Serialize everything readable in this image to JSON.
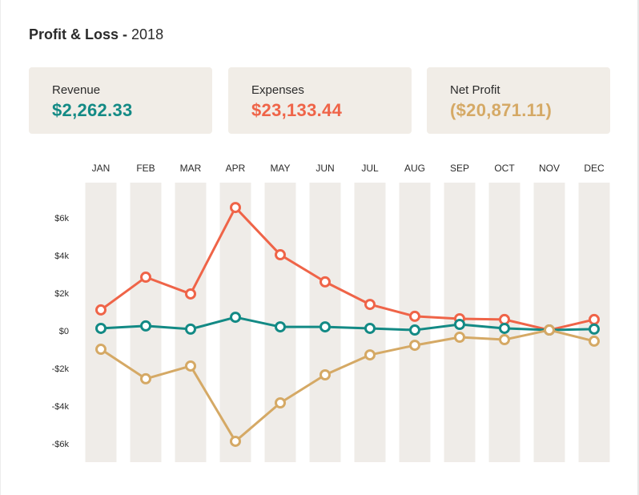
{
  "header": {
    "title": "Profit & Loss -",
    "year": "2018"
  },
  "cards": [
    {
      "label": "Revenue",
      "value": "$2,262.33",
      "color": "#138a85"
    },
    {
      "label": "Expenses",
      "value": "$23,133.44",
      "color": "#ef6448"
    },
    {
      "label": "Net Profit",
      "value": "($20,871.11)",
      "color": "#d5a965"
    }
  ],
  "chart_data": {
    "type": "line",
    "title": "Profit & Loss - 2018",
    "xlabel": "",
    "ylabel": "",
    "categories": [
      "JAN",
      "FEB",
      "MAR",
      "APR",
      "MAY",
      "JUN",
      "JUL",
      "AUG",
      "SEP",
      "OCT",
      "NOV",
      "DEC"
    ],
    "y_ticks": [
      {
        "value": 6000,
        "label": "$6k"
      },
      {
        "value": 4000,
        "label": "$4k"
      },
      {
        "value": 2000,
        "label": "$2k"
      },
      {
        "value": 0,
        "label": "$0"
      },
      {
        "value": -2000,
        "label": "-$2k"
      },
      {
        "value": -4000,
        "label": "-$4k"
      },
      {
        "value": -6000,
        "label": "-$6k"
      }
    ],
    "ylim": [
      -7000,
      7500
    ],
    "grid": false,
    "column_bands": true,
    "series": [
      {
        "name": "Expenses",
        "color": "#ef6448",
        "values": [
          1110,
          2850,
          1960,
          6550,
          4040,
          2600,
          1400,
          770,
          640,
          600,
          40,
          600
        ]
      },
      {
        "name": "Revenue",
        "color": "#138a85",
        "values": [
          130,
          260,
          90,
          720,
          210,
          210,
          130,
          40,
          340,
          130,
          40,
          90
        ]
      },
      {
        "name": "Net Profit",
        "color": "#d5a965",
        "values": [
          -980,
          -2550,
          -1870,
          -5870,
          -3830,
          -2340,
          -1280,
          -770,
          -340,
          -470,
          40,
          -550
        ]
      }
    ]
  }
}
